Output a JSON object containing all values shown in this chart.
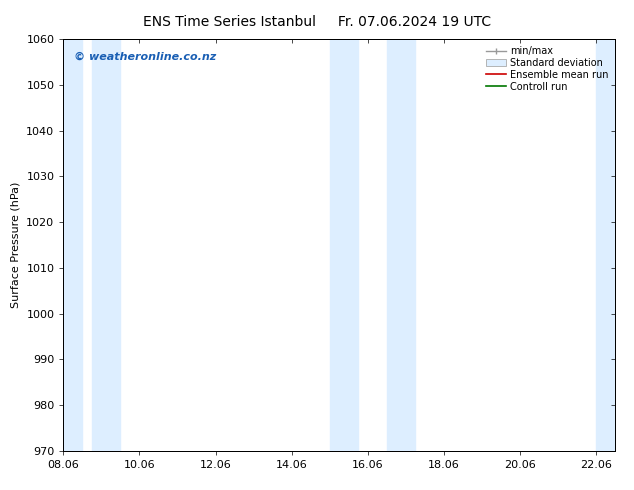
{
  "title": "ENS Time Series Istanbul",
  "title2": "Fr. 07.06.2024 19 UTC",
  "ylabel": "Surface Pressure (hPa)",
  "ylim": [
    970,
    1060
  ],
  "yticks": [
    970,
    980,
    990,
    1000,
    1010,
    1020,
    1030,
    1040,
    1050,
    1060
  ],
  "xtick_labels": [
    "08.06",
    "10.06",
    "12.06",
    "14.06",
    "16.06",
    "18.06",
    "20.06",
    "22.06"
  ],
  "xtick_positions": [
    0,
    2,
    4,
    6,
    8,
    10,
    12,
    14
  ],
  "x_min": 0,
  "x_max": 14.5,
  "shade_bands": [
    {
      "x_start": 0.0,
      "x_end": 0.5,
      "color": "#ddeeff"
    },
    {
      "x_start": 0.75,
      "x_end": 1.5,
      "color": "#ddeeff"
    },
    {
      "x_start": 7.0,
      "x_end": 7.75,
      "color": "#ddeeff"
    },
    {
      "x_start": 8.5,
      "x_end": 9.25,
      "color": "#ddeeff"
    },
    {
      "x_start": 14.0,
      "x_end": 14.5,
      "color": "#ddeeff"
    }
  ],
  "watermark": "© weatheronline.co.nz",
  "watermark_color": "#1a5fb4",
  "background_color": "#ffffff",
  "plot_bg_color": "#ffffff",
  "legend_items": [
    {
      "label": "min/max",
      "style": "minmax"
    },
    {
      "label": "Standard deviation",
      "style": "stddev"
    },
    {
      "label": "Ensemble mean run",
      "color": "#cc0000",
      "style": "line"
    },
    {
      "label": "Controll run",
      "color": "#007700",
      "style": "line"
    }
  ],
  "title_fontsize": 10,
  "label_fontsize": 8,
  "tick_fontsize": 8,
  "watermark_fontsize": 8,
  "figsize": [
    6.34,
    4.9
  ],
  "dpi": 100
}
